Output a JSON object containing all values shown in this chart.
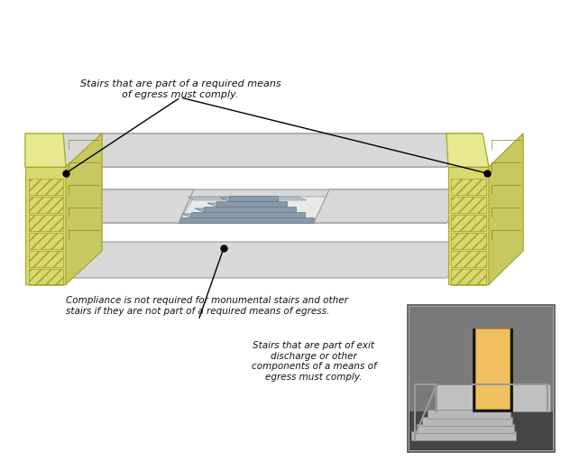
{
  "bg_color": "#ffffff",
  "fig_width": 6.22,
  "fig_height": 5.22,
  "dpi": 100,
  "note1": "Stairs that are part of a required means\nof egress must comply.",
  "note2": "Compliance is not required for monumental stairs and other\nstairs if they are not part of a required means of egress.",
  "note3": "Stairs that are part of exit\ndischarge or other\ncomponents of a means of\negress must comply.",
  "floor_color": "#d8d8d8",
  "floor_edge_color": "#999999",
  "tower_color_front": "#d8d870",
  "tower_color_top": "#e8e890",
  "tower_color_side": "#c8c860",
  "tower_edge": "#aaa830",
  "stair_light": "#aabbcc",
  "stair_mid": "#8899aa",
  "stair_dark": "#667788",
  "door_color": "#f0c060",
  "inset_wall": "#808080",
  "inset_floor_dark": "#555555"
}
